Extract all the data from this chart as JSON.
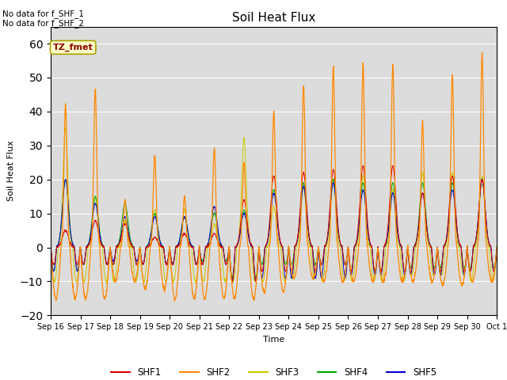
{
  "title": "Soil Heat Flux",
  "xlabel": "Time",
  "ylabel": "Soil Heat Flux",
  "ylim": [
    -20,
    65
  ],
  "yticks": [
    -20,
    -10,
    0,
    10,
    20,
    30,
    40,
    50,
    60
  ],
  "bg_color": "#dcdcdc",
  "annotation_text": "No data for f_SHF_1\nNo data for f_SHF_2",
  "tz_label": "TZ_fmet",
  "legend_entries": [
    "SHF1",
    "SHF2",
    "SHF3",
    "SHF4",
    "SHF5"
  ],
  "legend_colors": [
    "#dd0000",
    "#ff8800",
    "#cccc00",
    "#00aa00",
    "#0000cc"
  ],
  "num_days": 15,
  "start_day": 16,
  "day_peaks_shf2": [
    42,
    47,
    14,
    27,
    15,
    29,
    25,
    40,
    48,
    53,
    54,
    54,
    37,
    51,
    57
  ],
  "day_peaks_shf3": [
    35,
    15,
    8,
    11,
    11,
    7,
    32,
    12,
    18,
    20,
    21,
    17,
    22,
    22,
    21
  ],
  "day_peaks_shf1": [
    5,
    8,
    7,
    3,
    4,
    4,
    14,
    21,
    22,
    23,
    24,
    24,
    16,
    21,
    20
  ],
  "day_peaks_shf4": [
    20,
    15,
    13,
    10,
    9,
    10,
    11,
    17,
    19,
    20,
    19,
    19,
    19,
    19,
    20
  ],
  "day_peaks_shf5": [
    20,
    13,
    9,
    9,
    9,
    12,
    10,
    16,
    18,
    19,
    17,
    16,
    16,
    17,
    20
  ],
  "day_troughs_shf2": [
    -15,
    -15,
    -10,
    -12,
    -15,
    -15,
    -15,
    -13,
    -9,
    -10,
    -10,
    -10,
    -10,
    -11,
    -10
  ],
  "day_troughs_shf3": [
    -10,
    -10,
    -10,
    -10,
    -10,
    -10,
    -10,
    -10,
    -9,
    -10,
    -10,
    -10,
    -8,
    -8,
    -10
  ],
  "day_troughs_shf1": [
    -5,
    -5,
    -5,
    -5,
    -5,
    -5,
    -10,
    -7,
    -7,
    -5,
    -7,
    -7,
    -7,
    -7,
    -7
  ],
  "day_troughs_shf4": [
    -7,
    -5,
    -5,
    -5,
    -5,
    -4,
    -9,
    -5,
    -5,
    -5,
    -7,
    -7,
    -6,
    -6,
    -6
  ],
  "day_troughs_shf5": [
    -7,
    -5,
    -4,
    -5,
    -5,
    -5,
    -10,
    -9,
    -9,
    -9,
    -8,
    -8,
    -8,
    -8,
    -7
  ]
}
